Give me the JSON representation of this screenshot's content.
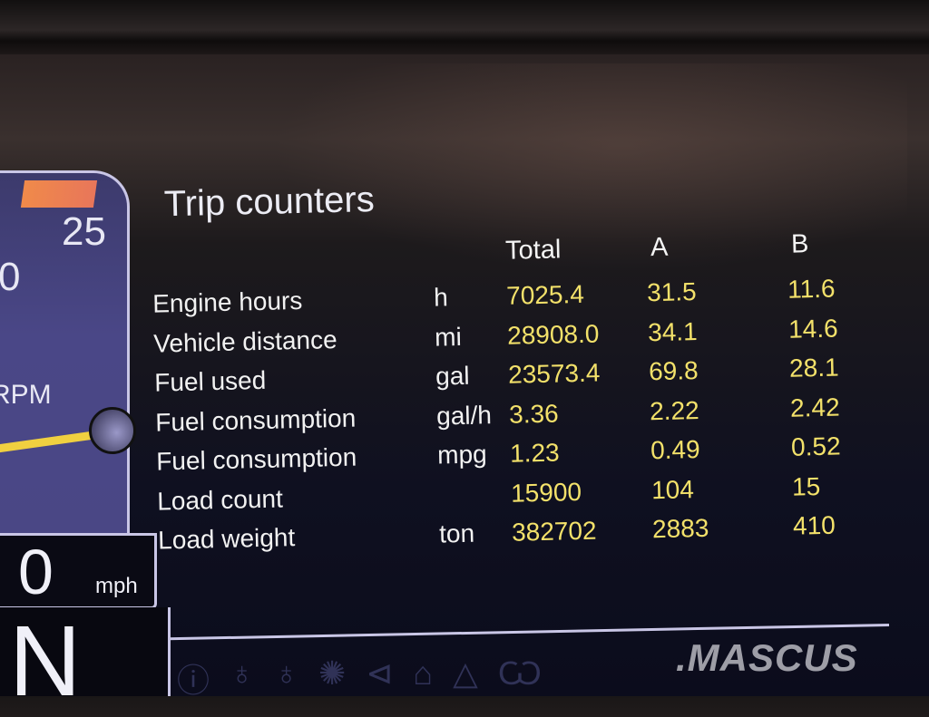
{
  "gauge": {
    "tick_25": "25",
    "tick_0": "0",
    "rpm_label": "RPM",
    "speed": "0",
    "speed_unit": "mph",
    "gear": "N",
    "needle_color": "#f0d040"
  },
  "title": "Trip counters",
  "headers": {
    "total": "Total",
    "a": "A",
    "b": "B"
  },
  "rows": [
    {
      "label": "Engine hours",
      "unit": "h",
      "total": "7025.4",
      "a": "31.5",
      "b": "11.6"
    },
    {
      "label": "Vehicle distance",
      "unit": "mi",
      "total": "28908.0",
      "a": "34.1",
      "b": "14.6"
    },
    {
      "label": "Fuel used",
      "unit": "gal",
      "total": "23573.4",
      "a": "69.8",
      "b": "28.1"
    },
    {
      "label": "Fuel consumption",
      "unit": "gal/h",
      "total": "3.36",
      "a": "2.22",
      "b": "2.42"
    },
    {
      "label": "Fuel consumption",
      "unit": "mpg",
      "total": "1.23",
      "a": "0.49",
      "b": "0.52"
    },
    {
      "label": "Load count",
      "unit": "",
      "total": "15900",
      "a": "104",
      "b": "15"
    },
    {
      "label": "Load weight",
      "unit": "ton",
      "total": "382702",
      "a": "2883",
      "b": "410"
    }
  ],
  "colors": {
    "value": "#f3e16a",
    "label": "#f2f2f2",
    "gauge_bg": "#4a4787"
  },
  "warning_icons": [
    "brake-warning-icon",
    "bulb-icon",
    "bulb-icon",
    "glow-plug-icon",
    "beam-icon",
    "engine-icon",
    "warning-triangle-icon",
    "tire-pressure-icon",
    "seatbelt-icon"
  ],
  "watermark": ".MASCUS"
}
